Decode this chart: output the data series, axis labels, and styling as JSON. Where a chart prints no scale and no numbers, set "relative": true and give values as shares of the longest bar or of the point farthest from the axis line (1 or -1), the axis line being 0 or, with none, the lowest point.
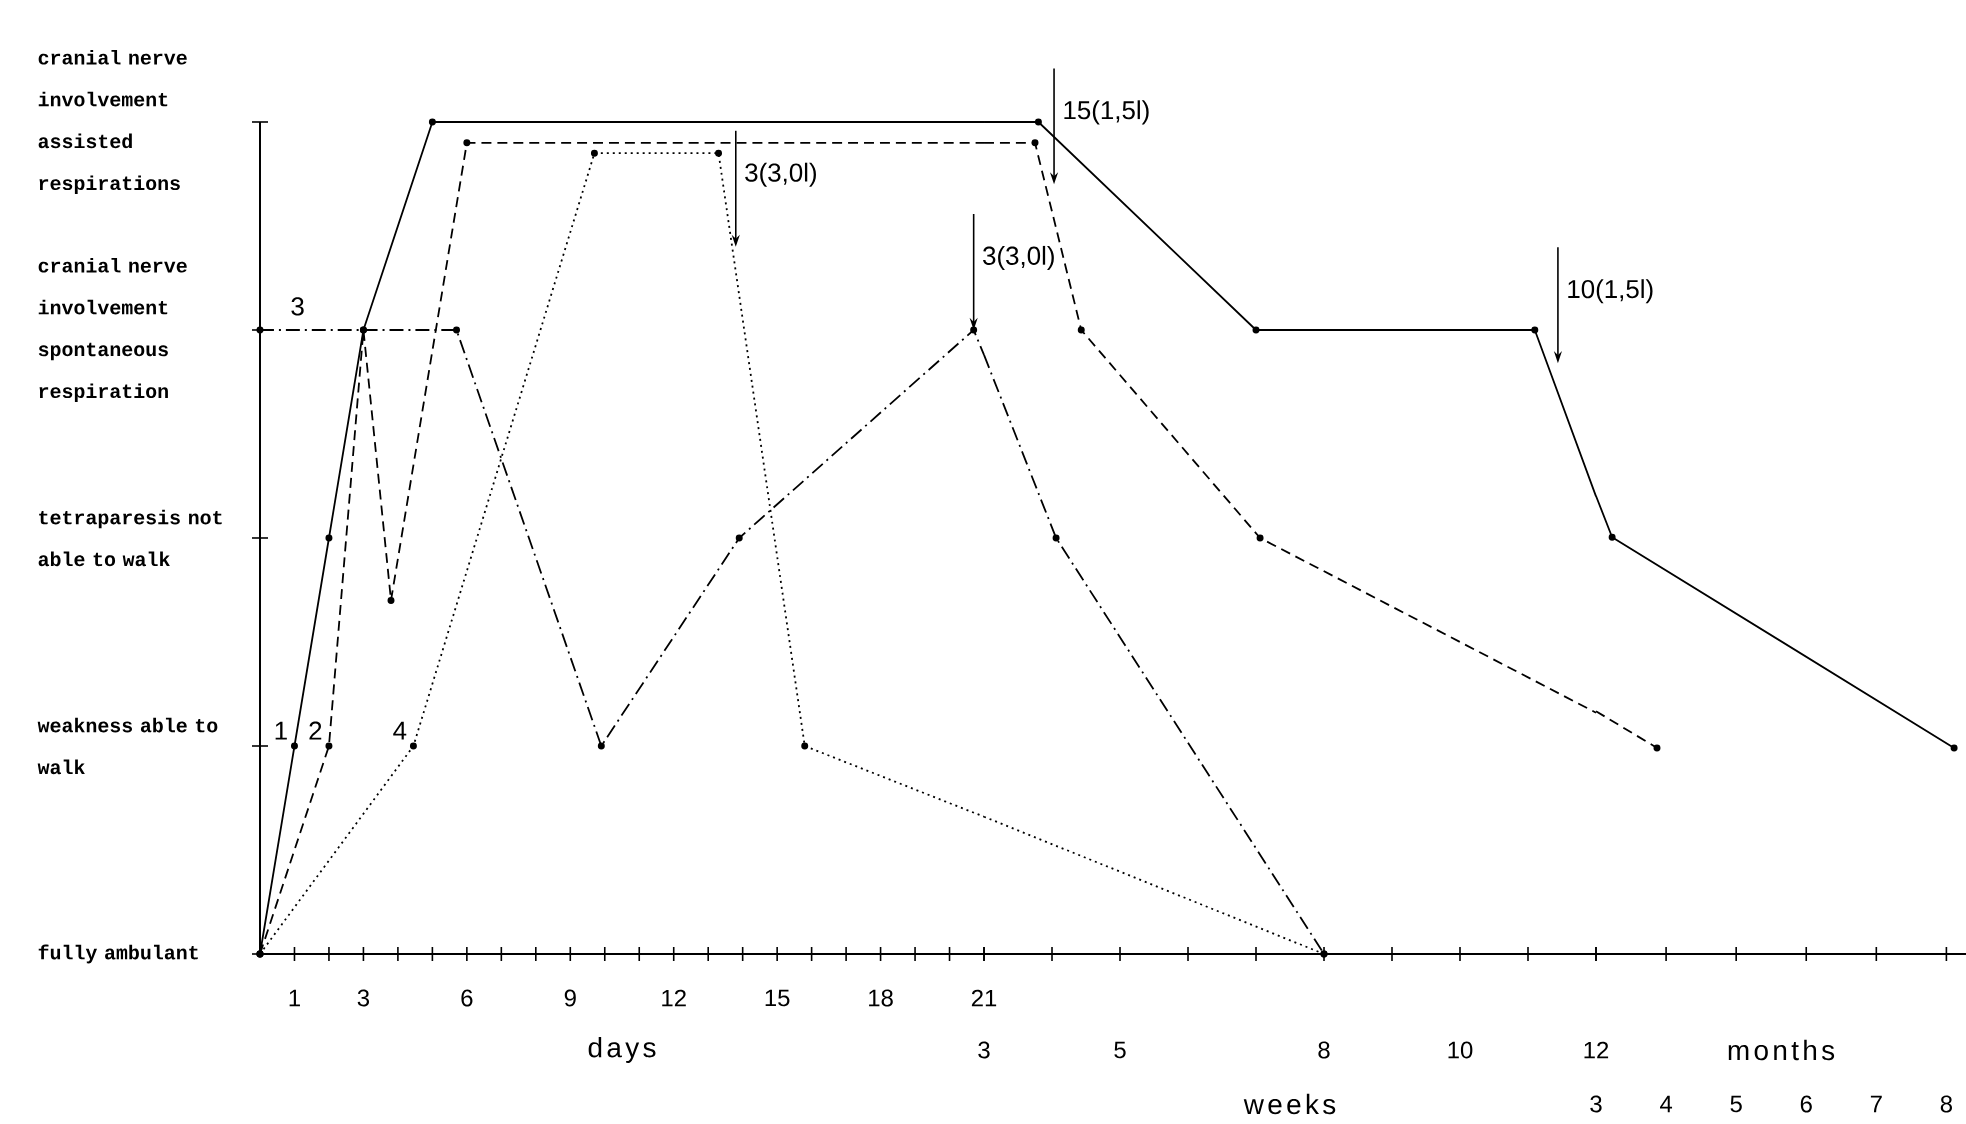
{
  "chart_data": [
    {
      "type": "line",
      "relative": true,
      "xlabel": "days",
      "marker": "circle",
      "xlim": [
        0,
        21
      ],
      "xticks": [
        {
          "value": 1,
          "label": "1"
        },
        {
          "value": 2,
          "label": null
        },
        {
          "value": 3,
          "label": "3"
        },
        {
          "value": 4,
          "label": null
        },
        {
          "value": 5,
          "label": null
        },
        {
          "value": 6,
          "label": "6"
        },
        {
          "value": 7,
          "label": null
        },
        {
          "value": 8,
          "label": null
        },
        {
          "value": 9,
          "label": "9"
        },
        {
          "value": 10,
          "label": null
        },
        {
          "value": 11,
          "label": null
        },
        {
          "value": 12,
          "label": "12"
        },
        {
          "value": 13,
          "label": null
        },
        {
          "value": 14,
          "label": null
        },
        {
          "value": 15,
          "label": "15"
        },
        {
          "value": 16,
          "label": null
        },
        {
          "value": 17,
          "label": null
        },
        {
          "value": 18,
          "label": "18"
        },
        {
          "value": 19,
          "label": null
        },
        {
          "value": 20,
          "label": null
        },
        {
          "value": 21,
          "label": "21"
        }
      ],
      "series": [
        {
          "name": "1",
          "color": "#000000",
          "line_style": "solid",
          "x": [
            0,
            1,
            2,
            3,
            5,
            21
          ],
          "values": [
            0,
            0.25,
            0.5,
            0.75,
            1,
            1
          ]
        },
        {
          "name": "2",
          "color": "#000000",
          "line_style": "dashed",
          "x": [
            0,
            2,
            3,
            3.8,
            6,
            21
          ],
          "values": [
            0,
            0.25,
            0.75,
            0.425,
            0.975,
            0.975
          ]
        },
        {
          "name": "3",
          "color": "#000000",
          "line_style": "dashdot",
          "x": [
            0,
            5.7,
            9.9,
            13.9,
            20.7,
            21
          ],
          "values": [
            0.75,
            0.75,
            0.25,
            0.5,
            0.75,
            0.72
          ]
        },
        {
          "name": "4",
          "color": "#000000",
          "line_style": "dotted",
          "x": [
            0,
            4.45,
            9.7,
            13.3,
            15.8,
            21
          ],
          "values": [
            0,
            0.25,
            0.9625,
            0.9625,
            0.25,
            0.165
          ]
        }
      ],
      "annotations": [
        "fully ambulant",
        "weakness able to walk",
        "tetraparesis not able to walk",
        "cranial nerve involvement spontaneous respiration",
        "cranial nerve involvement assisted respirations",
        {
          "text": "3(3,0l)",
          "x": 13.8,
          "y": 0.85
        },
        {
          "text": "3(3,0l)",
          "x": 20.7,
          "y": 0.75
        }
      ]
    },
    {
      "type": "line",
      "relative": true,
      "xlabel": "weeks",
      "marker": "circle",
      "xlim": [
        3,
        12
      ],
      "tick_labels": "x",
      "xticks": [
        3,
        {
          "value": 4,
          "label": null
        },
        5,
        {
          "value": 6,
          "label": null
        },
        {
          "value": 7,
          "label": null
        },
        8,
        {
          "value": 9,
          "label": null
        },
        10,
        {
          "value": 11,
          "label": null
        },
        12
      ],
      "series": [
        {
          "color": "#000000",
          "line_style": "solid",
          "x": [
            3,
            3.8,
            7,
            11.1,
            12
          ],
          "values": [
            1,
            1,
            0.75,
            0.75,
            0.55
          ]
        },
        {
          "color": "#000000",
          "line_style": "dashed",
          "x": [
            3,
            3.75,
            4.43,
            7.06,
            12
          ],
          "values": [
            0.975,
            0.975,
            0.75,
            0.5,
            0.29
          ]
        },
        {
          "color": "#000000",
          "line_style": "dashdot",
          "x": [
            3,
            4.06,
            8
          ],
          "values": [
            0.72,
            0.5,
            0
          ]
        },
        {
          "color": "#000000",
          "line_style": "dotted",
          "x": [
            3,
            8
          ],
          "values": [
            0.165,
            0
          ]
        }
      ],
      "annotations": [
        {
          "text": "15(1,5l)",
          "x": 4.03,
          "y": 0.925
        },
        {
          "text": "10(1,5l)",
          "x": 11.44,
          "y": 0.71
        }
      ]
    },
    {
      "type": "line",
      "relative": true,
      "xlabel": "months",
      "marker": "circle",
      "xlim": [
        3,
        8.28
      ],
      "tick_labels": "x",
      "xticks": [
        3,
        4,
        5,
        6,
        7,
        8
      ],
      "series": [
        {
          "color": "#000000",
          "line_style": "solid",
          "x": [
            3,
            3.23,
            8.11
          ],
          "values": [
            1,
            0.91,
            0.45
          ]
        },
        {
          "color": "#000000",
          "line_style": "dashed",
          "x": [
            3,
            3.87
          ],
          "values": [
            0.53,
            0.45
          ]
        }
      ]
    }
  ]
}
